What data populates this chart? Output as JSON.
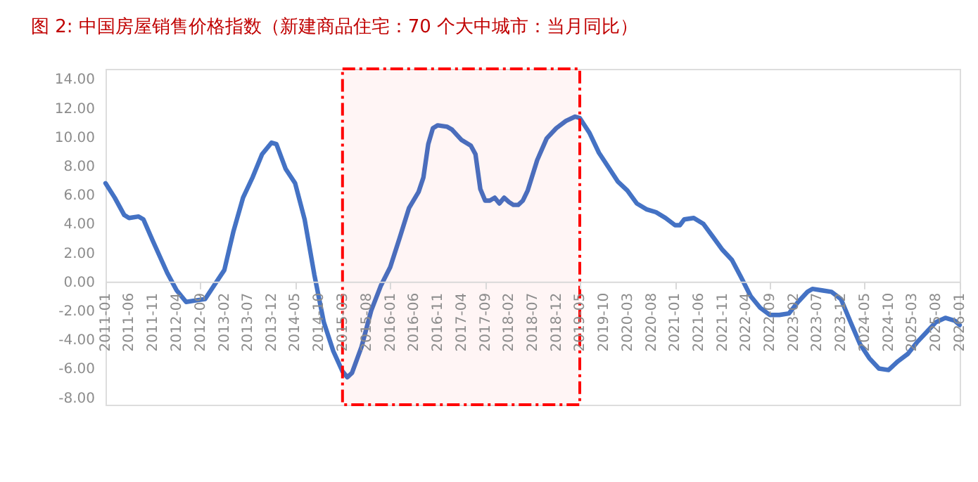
{
  "chart_data": {
    "type": "line",
    "title": "图 2:   中国房屋销售价格指数（新建商品住宅：70 个大中城市：当月同比）",
    "x": [
      "2011-01",
      "2011-03",
      "2011-05",
      "2011-06",
      "2011-08",
      "2011-09",
      "2011-11",
      "2012-02",
      "2012-04",
      "2012-06",
      "2012-08",
      "2012-10",
      "2012-12",
      "2013-02",
      "2013-04",
      "2013-06",
      "2013-08",
      "2013-10",
      "2013-12",
      "2014-01",
      "2014-03",
      "2014-05",
      "2014-07",
      "2014-09",
      "2014-11",
      "2015-01",
      "2015-03",
      "2015-04",
      "2015-05",
      "2015-07",
      "2015-09",
      "2015-11",
      "2016-01",
      "2016-03",
      "2016-05",
      "2016-07",
      "2016-08",
      "2016-09",
      "2016-10",
      "2016-11",
      "2017-01",
      "2017-02",
      "2017-04",
      "2017-06",
      "2017-07",
      "2017-08",
      "2017-09",
      "2017-10",
      "2017-11",
      "2017-12",
      "2018-01",
      "2018-02",
      "2018-03",
      "2018-04",
      "2018-05",
      "2018-06",
      "2018-08",
      "2018-10",
      "2018-12",
      "2019-02",
      "2019-04",
      "2019-05",
      "2019-07",
      "2019-09",
      "2019-11",
      "2020-01",
      "2020-03",
      "2020-05",
      "2020-07",
      "2020-09",
      "2020-11",
      "2021-01",
      "2021-02",
      "2021-03",
      "2021-05",
      "2021-07",
      "2021-09",
      "2021-11",
      "2022-01",
      "2022-03",
      "2022-05",
      "2022-07",
      "2022-09",
      "2022-11",
      "2023-01",
      "2023-03",
      "2023-05",
      "2023-06",
      "2023-08",
      "2023-10",
      "2023-12",
      "2024-02",
      "2024-04",
      "2024-06",
      "2024-08",
      "2024-10",
      "2024-12",
      "2025-02",
      "2025-04",
      "2025-06",
      "2025-08",
      "2025-10",
      "2025-12",
      "2026-01"
    ],
    "series": [
      {
        "color": "#4472c4",
        "values": [
          6.8,
          5.8,
          4.6,
          4.4,
          4.5,
          4.3,
          2.8,
          0.6,
          -0.6,
          -1.4,
          -1.3,
          -1.2,
          -0.2,
          0.8,
          3.5,
          5.8,
          7.2,
          8.8,
          9.6,
          9.5,
          7.8,
          6.8,
          4.3,
          0.5,
          -2.8,
          -4.8,
          -6.2,
          -6.6,
          -6.3,
          -4.5,
          -2.0,
          -0.3,
          1.0,
          3.0,
          5.1,
          6.2,
          7.2,
          9.5,
          10.6,
          10.8,
          10.7,
          10.5,
          9.8,
          9.4,
          8.8,
          6.4,
          5.6,
          5.6,
          5.8,
          5.4,
          5.8,
          5.5,
          5.3,
          5.3,
          5.6,
          6.3,
          8.4,
          9.9,
          10.6,
          11.1,
          11.4,
          11.3,
          10.3,
          8.9,
          7.9,
          6.9,
          6.3,
          5.4,
          5.0,
          4.8,
          4.4,
          3.9,
          3.9,
          4.3,
          4.4,
          4.0,
          3.1,
          2.2,
          1.5,
          0.3,
          -1.0,
          -1.8,
          -2.3,
          -2.3,
          -2.2,
          -1.4,
          -0.7,
          -0.5,
          -0.6,
          -0.7,
          -1.2,
          -2.8,
          -4.3,
          -5.3,
          -6.0,
          -6.1,
          -5.5,
          -5.0,
          -4.2,
          -3.5,
          -2.8,
          -2.5,
          -2.7,
          -3.0
        ]
      }
    ],
    "xlim": [
      "2011-01",
      "2026-01"
    ],
    "xticks": [
      "2011-01",
      "2011-06",
      "2011-11",
      "2012-04",
      "2012-09",
      "2013-02",
      "2013-07",
      "2013-12",
      "2014-05",
      "2014-10",
      "2015-03",
      "2015-08",
      "2016-01",
      "2016-06",
      "2016-11",
      "2017-04",
      "2017-09",
      "2018-02",
      "2018-07",
      "2018-12",
      "2019-05",
      "2019-10",
      "2020-03",
      "2020-08",
      "2021-01",
      "2021-06",
      "2021-11",
      "2022-04",
      "2022-09",
      "2023-02",
      "2023-07",
      "2023-12",
      "2024-05",
      "2024-10",
      "2025-03",
      "2025-08",
      "2026-01"
    ],
    "ylim": [
      -8.5,
      14.7
    ],
    "yticks": [
      {
        "value": -8,
        "label": "-8.00"
      },
      {
        "value": -6,
        "label": "-6.00"
      },
      {
        "value": -4,
        "label": "-4.00"
      },
      {
        "value": -2,
        "label": "-2.00"
      },
      {
        "value": 0,
        "label": "0.00"
      },
      {
        "value": 2,
        "label": "2.00"
      },
      {
        "value": 4,
        "label": "4.00"
      },
      {
        "value": 6,
        "label": "6.00"
      },
      {
        "value": 8,
        "label": "8.00"
      },
      {
        "value": 10,
        "label": "10.00"
      },
      {
        "value": 12,
        "label": "12.00"
      },
      {
        "value": 14,
        "label": "14.00"
      }
    ],
    "bands": [
      {
        "axis": "x",
        "from": "2015-03",
        "to": "2019-05",
        "color": "#ff0000"
      }
    ],
    "grid": false,
    "marker": "none",
    "line_style": "solid"
  }
}
